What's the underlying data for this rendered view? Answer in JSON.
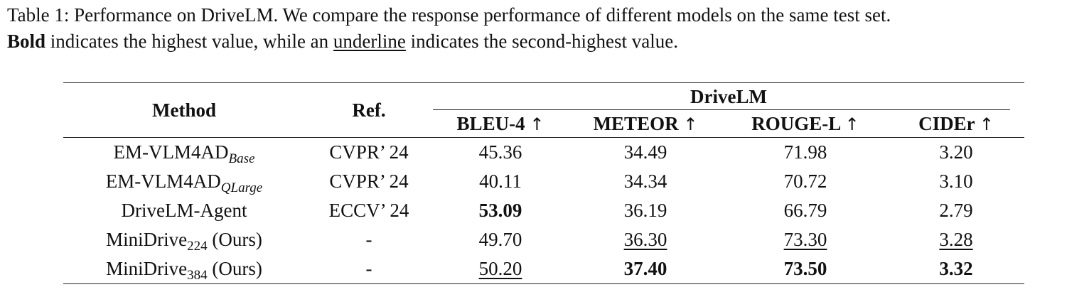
{
  "caption": {
    "line1": "Table 1: Performance on DriveLM. We compare the response performance of different models on the same test set.",
    "bold_word": "Bold",
    "line2_a": " indicates the highest value, while an ",
    "underline_word": "underline",
    "line2_b": " indicates the second-highest value."
  },
  "table": {
    "headers": {
      "method": "Method",
      "ref": "Ref.",
      "group": "DriveLM",
      "metrics": [
        "BLEU-4",
        "METEOR",
        "ROUGE-L",
        "CIDEr"
      ],
      "arrow": "↑"
    },
    "rows": [
      {
        "method": "EM-VLM4AD",
        "sub": "Base",
        "sub_italic": true,
        "suffix": "",
        "ref": "CVPR’ 24",
        "values": [
          "45.36",
          "34.49",
          "71.98",
          "3.20"
        ],
        "styles": [
          "",
          "",
          "",
          ""
        ]
      },
      {
        "method": "EM-VLM4AD",
        "sub": "QLarge",
        "sub_italic": true,
        "suffix": "",
        "ref": "CVPR’ 24",
        "values": [
          "40.11",
          "34.34",
          "70.72",
          "3.10"
        ],
        "styles": [
          "",
          "",
          "",
          ""
        ]
      },
      {
        "method": "DriveLM-Agent",
        "sub": "",
        "sub_italic": false,
        "suffix": "",
        "ref": "ECCV’ 24",
        "values": [
          "53.09",
          "36.19",
          "66.79",
          "2.79"
        ],
        "styles": [
          "best",
          "",
          "",
          ""
        ]
      },
      {
        "method": "MiniDrive",
        "sub": "224",
        "sub_italic": false,
        "suffix": " (Ours)",
        "ref": "-",
        "values": [
          "49.70",
          "36.30",
          "73.30",
          "3.28"
        ],
        "styles": [
          "",
          "second",
          "second",
          "second"
        ]
      },
      {
        "method": "MiniDrive",
        "sub": "384",
        "sub_italic": false,
        "suffix": " (Ours)",
        "ref": "-",
        "values": [
          "50.20",
          "37.40",
          "73.50",
          "3.32"
        ],
        "styles": [
          "second",
          "best",
          "best",
          "best"
        ]
      }
    ]
  }
}
